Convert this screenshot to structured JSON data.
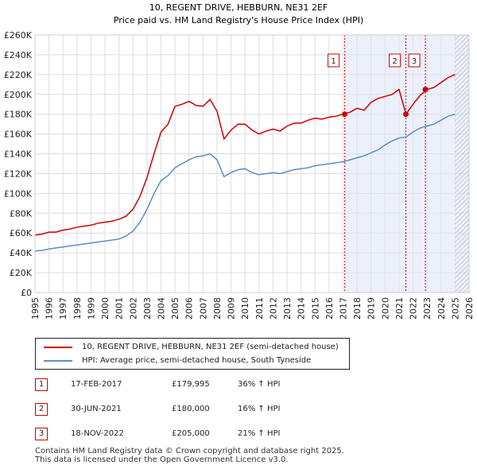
{
  "chart_data": {
    "type": "line",
    "title": "10, REGENT DRIVE, HEBBURN, NE31 2EF",
    "subtitle": "Price paid vs. HM Land Registry's House Price Index (HPI)",
    "xlim": [
      1995,
      2026
    ],
    "ylim": [
      0,
      260000
    ],
    "y_ticks": [
      0,
      20000,
      40000,
      60000,
      80000,
      100000,
      120000,
      140000,
      160000,
      180000,
      200000,
      220000,
      240000,
      260000
    ],
    "y_tick_labels": [
      "£0",
      "£20K",
      "£40K",
      "£60K",
      "£80K",
      "£100K",
      "£120K",
      "£140K",
      "£160K",
      "£180K",
      "£200K",
      "£220K",
      "£240K",
      "£260K"
    ],
    "x_ticks": [
      1995,
      1996,
      1997,
      1998,
      1999,
      2000,
      2001,
      2002,
      2003,
      2004,
      2005,
      2006,
      2007,
      2008,
      2009,
      2010,
      2011,
      2012,
      2013,
      2014,
      2015,
      2016,
      2017,
      2018,
      2019,
      2020,
      2021,
      2022,
      2023,
      2024,
      2025,
      2026
    ],
    "grid": true,
    "series": [
      {
        "name": "10, REGENT DRIVE, HEBBURN, NE31 2EF (semi-detached house)",
        "color": "#cc0000",
        "x": [
          1995.0,
          1995.5,
          1996.0,
          1996.5,
          1997.0,
          1997.5,
          1998.0,
          1998.5,
          1999.0,
          1999.5,
          2000.0,
          2000.5,
          2001.0,
          2001.5,
          2002.0,
          2002.5,
          2003.0,
          2003.5,
          2004.0,
          2004.5,
          2005.0,
          2005.5,
          2006.0,
          2006.5,
          2007.0,
          2007.5,
          2008.0,
          2008.5,
          2009.0,
          2009.5,
          2010.0,
          2010.5,
          2011.0,
          2011.5,
          2012.0,
          2012.5,
          2013.0,
          2013.5,
          2014.0,
          2014.5,
          2015.0,
          2015.5,
          2016.0,
          2016.5,
          2017.0,
          2017.5,
          2018.0,
          2018.5,
          2019.0,
          2019.5,
          2020.0,
          2020.5,
          2021.0,
          2021.5,
          2022.0,
          2022.5,
          2023.0,
          2023.5,
          2024.0,
          2024.5,
          2025.0
        ],
        "values": [
          58000,
          59000,
          61000,
          61000,
          63000,
          64000,
          66000,
          67000,
          68000,
          70000,
          71000,
          72000,
          74000,
          77000,
          84000,
          97000,
          116000,
          140000,
          162000,
          170000,
          188000,
          190000,
          193000,
          189000,
          188000,
          195000,
          183000,
          155000,
          164000,
          170000,
          170000,
          164000,
          160000,
          163000,
          165000,
          163000,
          168000,
          171000,
          171000,
          174000,
          176000,
          175000,
          177000,
          178000,
          180000,
          182000,
          186000,
          184000,
          192000,
          196000,
          198000,
          200000,
          205000,
          180000,
          190000,
          199000,
          205000,
          207000,
          212000,
          217000,
          220000
        ]
      },
      {
        "name": "HPI: Average price, semi-detached house, South Tyneside",
        "color": "#5b8ec9",
        "x": [
          1995.0,
          1995.5,
          1996.0,
          1996.5,
          1997.0,
          1997.5,
          1998.0,
          1998.5,
          1999.0,
          1999.5,
          2000.0,
          2000.5,
          2001.0,
          2001.5,
          2002.0,
          2002.5,
          2003.0,
          2003.5,
          2004.0,
          2004.5,
          2005.0,
          2005.5,
          2006.0,
          2006.5,
          2007.0,
          2007.5,
          2008.0,
          2008.5,
          2009.0,
          2009.5,
          2010.0,
          2010.5,
          2011.0,
          2011.5,
          2012.0,
          2012.5,
          2013.0,
          2013.5,
          2014.0,
          2014.5,
          2015.0,
          2015.5,
          2016.0,
          2016.5,
          2017.0,
          2017.5,
          2018.0,
          2018.5,
          2019.0,
          2019.5,
          2020.0,
          2020.5,
          2021.0,
          2021.5,
          2022.0,
          2022.5,
          2023.0,
          2023.5,
          2024.0,
          2024.5,
          2025.0
        ],
        "values": [
          42000,
          42500,
          44000,
          45000,
          46000,
          47000,
          48000,
          49000,
          50000,
          51000,
          52000,
          53000,
          54000,
          57000,
          62000,
          71000,
          84000,
          100000,
          113000,
          118000,
          126000,
          130000,
          134000,
          137000,
          138000,
          140000,
          134000,
          117000,
          121000,
          124000,
          125000,
          121000,
          119000,
          120000,
          121000,
          120000,
          122000,
          124000,
          125000,
          126000,
          128000,
          129000,
          130000,
          131000,
          132000,
          134000,
          136000,
          138000,
          141000,
          144000,
          149000,
          153000,
          156000,
          157000,
          162000,
          166000,
          168000,
          170000,
          174000,
          178000,
          180000
        ]
      }
    ],
    "sales": [
      {
        "label": "1",
        "year": 2017.12,
        "price": 179995
      },
      {
        "label": "2",
        "year": 2021.49,
        "price": 180000
      },
      {
        "label": "3",
        "year": 2022.88,
        "price": 205000
      }
    ],
    "projection_from_year": 2025.0
  },
  "legend": {
    "series1": "10, REGENT DRIVE, HEBBURN, NE31 2EF (semi-detached house)",
    "series2": "HPI: Average price, semi-detached house, South Tyneside",
    "series1_color": "#cc0000",
    "series2_color": "#5b8ec9"
  },
  "transactions": [
    {
      "num": "1",
      "date": "17-FEB-2017",
      "price": "£179,995",
      "hpi": "36% ↑ HPI"
    },
    {
      "num": "2",
      "date": "30-JUN-2021",
      "price": "£180,000",
      "hpi": "16% ↑ HPI"
    },
    {
      "num": "3",
      "date": "18-NOV-2022",
      "price": "£205,000",
      "hpi": "21% ↑ HPI"
    }
  ],
  "footer": {
    "line1": "Contains HM Land Registry data © Crown copyright and database right 2025.",
    "line2": "This data is licensed under the Open Government Licence v3.0."
  }
}
